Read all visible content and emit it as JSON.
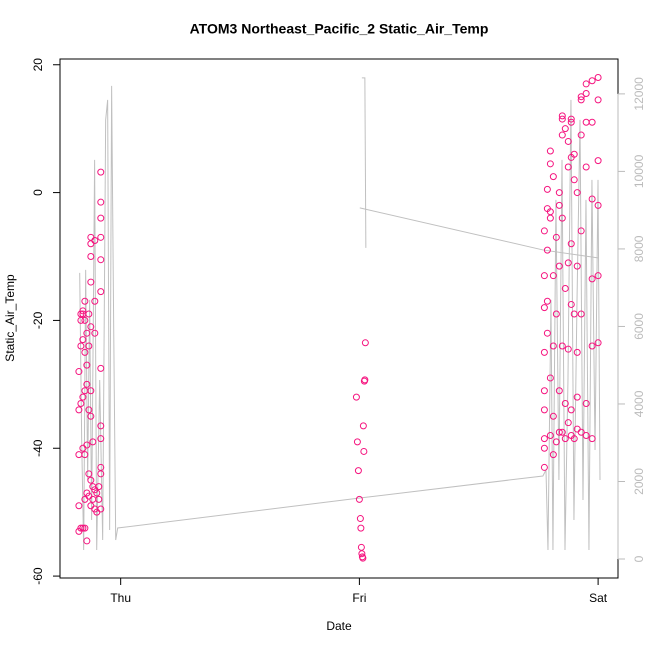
{
  "chart_data": {
    "type": "scatter",
    "title": "ATOM3 Northeast_Pacific_2 Static_Air_Temp",
    "x_label": "Date",
    "y_label": "Static_Air_Temp",
    "xlim": [
      -6.1,
      50
    ],
    "xticks": [
      {
        "value": 0,
        "label": "Thu"
      },
      {
        "value": 24,
        "label": "Fri"
      },
      {
        "value": 48,
        "label": "Sat"
      }
    ],
    "ylim": [
      -60.3,
      20.9
    ],
    "yticks": [
      -60,
      -40,
      -20,
      0,
      20
    ],
    "y2lim": [
      -490,
      12900
    ],
    "y2ticks": [
      0,
      2000,
      4000,
      6000,
      8000,
      10000,
      12000
    ],
    "series": [
      {
        "type": "line",
        "axis": "y2",
        "color": "#c0c0c0",
        "x": [
          -4.12,
          -3.92,
          -3.72,
          -3.52,
          -3.32,
          -3.12,
          -2.92,
          -2.62,
          -2.41,
          -2.11,
          -1.81,
          -1.51,
          -1.31,
          -1.11,
          -0.91,
          -0.7,
          -0.5,
          -0.3,
          24.04,
          42.45,
          42.76,
          42.96,
          43.26,
          43.46,
          43.76,
          44.06,
          44.37,
          44.67,
          44.97,
          45.27,
          45.57,
          45.88,
          46.18,
          46.48,
          46.78,
          47.08,
          47.38,
          47.69,
          47.99,
          48.19,
          48.19,
          24.25,
          24.55,
          24.65,
          24.65,
          24.04,
          42.45,
          47.99
        ],
        "values": [
          7381,
          3071,
          232,
          7458,
          2039,
          6684,
          1006,
          10297,
          232,
          4619,
          490,
          11329,
          11845,
          748,
          12206,
          5910,
          490,
          800,
          1574,
          2142,
          2297,
          232,
          6684,
          232,
          9265,
          2039,
          10297,
          232,
          4619,
          11845,
          1006,
          6684,
          11329,
          1523,
          9265,
          232,
          9781,
          2813,
          9781,
          2039,
          null,
          12413,
          12413,
          8026,
          null,
          9058,
          7974,
          7768
        ]
      },
      {
        "type": "scatter",
        "color": "#f5147f",
        "x": [
          -4.2,
          -4.2,
          -4.2,
          -4.2,
          -4.2,
          -4.0,
          -4.0,
          -4.0,
          -4.0,
          -4.0,
          -3.8,
          -3.8,
          -3.8,
          -3.8,
          -3.8,
          -3.8,
          -3.6,
          -3.6,
          -3.6,
          -3.6,
          -3.6,
          -3.6,
          -3.6,
          -3.4,
          -3.4,
          -3.4,
          -3.4,
          -3.4,
          -3.4,
          -3.2,
          -3.2,
          -3.2,
          -3.2,
          -3.2,
          -3.0,
          -3.0,
          -3.0,
          -3.0,
          -3.0,
          -3.0,
          -3.0,
          -3.0,
          -3.0,
          -2.8,
          -2.8,
          -2.8,
          -2.6,
          -2.6,
          -2.6,
          -2.6,
          -2.6,
          -2.4,
          -2.4,
          -2.2,
          -2.2,
          -2.0,
          -2.0,
          -2.0,
          -2.0,
          -2.0,
          -2.0,
          -2.0,
          -2.0,
          -2.0,
          -2.0,
          -2.0,
          -2.0,
          23.7,
          23.8,
          23.9,
          24.0,
          24.1,
          24.15,
          24.2,
          24.25,
          24.3,
          24.35,
          24.4,
          24.45,
          24.5,
          24.55,
          24.6,
          42.6,
          42.6,
          42.6,
          42.6,
          42.6,
          42.6,
          42.6,
          42.6,
          42.6,
          42.9,
          42.9,
          42.9,
          42.9,
          42.9,
          43.2,
          43.2,
          43.2,
          43.2,
          43.2,
          43.2,
          43.5,
          43.5,
          43.5,
          43.5,
          43.5,
          43.8,
          43.8,
          43.8,
          44.1,
          44.1,
          44.1,
          44.1,
          44.1,
          44.4,
          44.4,
          44.4,
          44.4,
          44.4,
          44.4,
          44.7,
          44.7,
          44.7,
          44.7,
          45.0,
          45.0,
          45.0,
          45.0,
          45.0,
          45.3,
          45.3,
          45.3,
          45.3,
          45.3,
          45.3,
          45.3,
          45.6,
          45.6,
          45.6,
          45.6,
          45.9,
          45.9,
          45.9,
          45.9,
          45.9,
          46.3,
          46.3,
          46.3,
          46.3,
          46.3,
          46.3,
          46.8,
          46.8,
          46.8,
          46.8,
          46.8,
          46.8,
          47.4,
          47.4,
          47.4,
          47.4,
          47.4,
          47.4,
          48.0,
          48.0,
          48.0,
          48.0,
          48.0,
          48.0
        ],
        "values": [
          -53,
          -49,
          -41,
          -34,
          -28,
          -24,
          -20,
          -19,
          -33,
          -52.5,
          -19,
          -18.5,
          -23,
          -32,
          -40,
          -52.5,
          -17,
          -20,
          -25,
          -31,
          -41,
          -48,
          -52.5,
          -22,
          -27,
          -30,
          -39.5,
          -47,
          -54.5,
          -19,
          -24,
          -34,
          -44,
          -47.5,
          -7,
          -8,
          -10,
          -14,
          -21,
          -31,
          -35,
          -45,
          -49,
          -39,
          -46,
          -48,
          -7.5,
          -17,
          -22,
          -46.5,
          -49.5,
          -47,
          -50,
          -48,
          -46,
          -43,
          -44,
          -38.5,
          -36.5,
          -27.5,
          -15.5,
          -10.5,
          -7,
          -4,
          -1.5,
          3.2,
          -49.5,
          -32,
          -39,
          -43.5,
          -48,
          -51,
          -52.5,
          -55.5,
          -56.5,
          -57,
          -57.2,
          -36.5,
          -40.5,
          -29.5,
          -29.3,
          -23.5,
          -6,
          -13,
          -18,
          -25,
          -31,
          -34,
          -38.5,
          -40,
          -43,
          -22,
          -17,
          -9,
          -2.5,
          0.5,
          4.5,
          6.5,
          -3,
          -4,
          -29,
          -38,
          -13,
          2.5,
          -24,
          -35,
          -41,
          -7,
          -19,
          -39,
          0,
          -2,
          -11.5,
          -31,
          -37.5,
          11.5,
          12,
          9,
          -4,
          -24,
          -37.5,
          10,
          -15,
          -33,
          -38.5,
          8,
          4,
          -11,
          -24.5,
          -36,
          11.5,
          11,
          5.5,
          -8,
          -17.5,
          -34,
          -38,
          6,
          2,
          -19,
          -38.5,
          0,
          -11.5,
          -25,
          -32,
          -37,
          9,
          14.5,
          15,
          -6,
          -19,
          -37.5,
          15.5,
          17,
          11,
          4,
          -33,
          -38,
          17.5,
          11,
          -1,
          -13.5,
          -24,
          -38.5,
          18,
          14.5,
          5,
          -2,
          -13,
          -23.5
        ]
      }
    ]
  }
}
